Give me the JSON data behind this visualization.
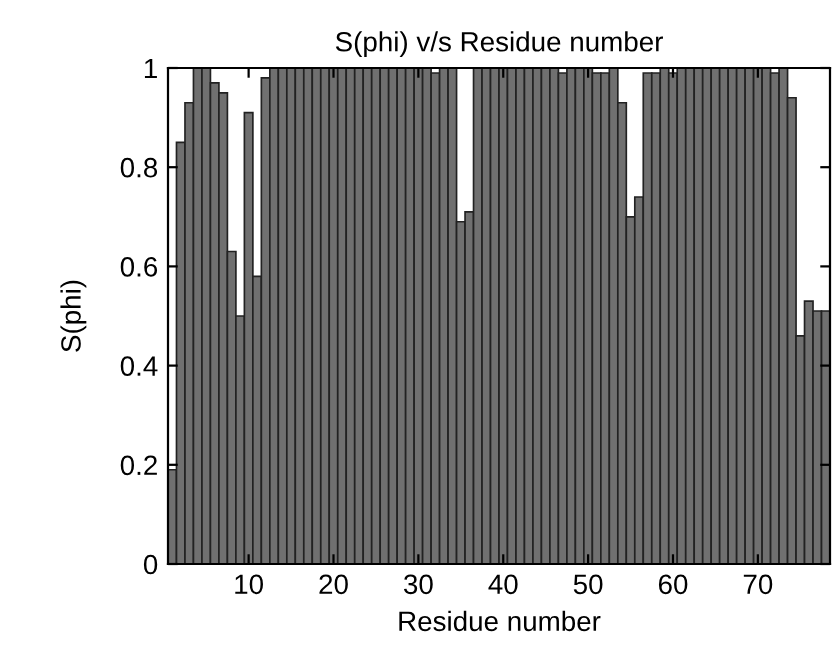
{
  "chart_data": {
    "type": "bar",
    "title": "S(phi) v/s Residue number",
    "xlabel": "Residue number",
    "ylabel": "S(phi)",
    "x": [
      1,
      2,
      3,
      4,
      5,
      6,
      7,
      8,
      9,
      10,
      11,
      12,
      13,
      14,
      15,
      16,
      17,
      18,
      19,
      20,
      21,
      22,
      23,
      24,
      25,
      26,
      27,
      28,
      29,
      30,
      31,
      32,
      33,
      34,
      35,
      36,
      37,
      38,
      39,
      40,
      41,
      42,
      43,
      44,
      45,
      46,
      47,
      48,
      49,
      50,
      51,
      52,
      53,
      54,
      55,
      56,
      57,
      58,
      59,
      60,
      61,
      62,
      63,
      64,
      65,
      66,
      67,
      68,
      69,
      70,
      71,
      72,
      73,
      74,
      75,
      76,
      77,
      78
    ],
    "values": [
      0.19,
      0.85,
      0.93,
      1.0,
      1.0,
      0.97,
      0.95,
      0.63,
      0.5,
      0.91,
      0.58,
      0.98,
      1.0,
      1.0,
      1.0,
      1.0,
      1.0,
      1.0,
      1.0,
      1.0,
      1.0,
      1.0,
      1.0,
      1.0,
      1.0,
      1.0,
      1.0,
      1.0,
      1.0,
      1.0,
      1.0,
      0.99,
      1.0,
      1.0,
      0.69,
      0.71,
      1.0,
      1.0,
      1.0,
      1.0,
      1.0,
      1.0,
      1.0,
      1.0,
      1.0,
      1.0,
      0.99,
      1.0,
      1.0,
      1.0,
      0.99,
      0.99,
      1.0,
      0.93,
      0.7,
      0.74,
      0.99,
      0.99,
      1.0,
      0.99,
      1.0,
      1.0,
      1.0,
      1.0,
      1.0,
      1.0,
      1.0,
      1.0,
      1.0,
      1.0,
      1.0,
      0.99,
      1.0,
      0.94,
      0.46,
      0.53,
      0.51,
      0.51
    ],
    "color": "#707070",
    "xlim": [
      0.5,
      78.5
    ],
    "ylim": [
      0,
      1
    ],
    "xticks": [
      10,
      20,
      30,
      40,
      50,
      60,
      70
    ],
    "yticks": [
      0,
      0.2,
      0.4,
      0.6,
      0.8,
      1
    ],
    "grid": false,
    "legend": false
  }
}
